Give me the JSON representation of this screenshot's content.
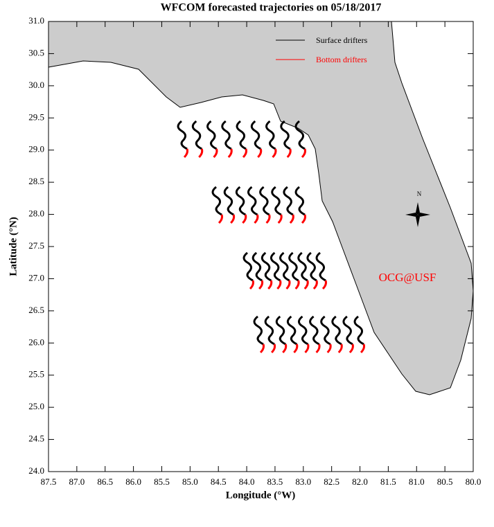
{
  "chart_data": {
    "type": "map",
    "title": "WFCOM forecasted trajectories on 05/18/2017",
    "x_label": "Longitude (°W)",
    "y_label": "Latitude (°N)",
    "xlim": [
      87.5,
      80.0
    ],
    "ylim": [
      24.0,
      31.0
    ],
    "xticks": [
      87.5,
      {
        "value": 87,
        "label": "87.0"
      },
      86.5,
      {
        "value": 86,
        "label": "86.0"
      },
      85.5,
      {
        "value": 85,
        "label": "85.0"
      },
      84.5,
      {
        "value": 84,
        "label": "84.0"
      },
      83.5,
      {
        "value": 83,
        "label": "83.0"
      },
      82.5,
      {
        "value": 82,
        "label": "82.0"
      },
      81.5,
      {
        "value": 81,
        "label": "81.0"
      },
      80.5,
      {
        "value": 80,
        "label": "80.0"
      }
    ],
    "yticks": [
      {
        "value": 24,
        "label": "24.0"
      },
      24.5,
      {
        "value": 25,
        "label": "25.0"
      },
      25.5,
      {
        "value": 26,
        "label": "26.0"
      },
      26.5,
      {
        "value": 27,
        "label": "27.0"
      },
      27.5,
      {
        "value": 28,
        "label": "28.0"
      },
      28.5,
      {
        "value": 29,
        "label": "29.0"
      },
      29.5,
      {
        "value": 30,
        "label": "30.0"
      },
      30.5,
      {
        "value": 31,
        "label": "31.0"
      }
    ],
    "series": [
      {
        "name": "Surface drifters",
        "color": "#000000"
      },
      {
        "name": "Bottom drifters",
        "color": "#ff0000"
      }
    ],
    "annotations": [
      "OCG@USF",
      "N"
    ],
    "annotation_color": "#ff0000",
    "land_color": "#cccccc"
  }
}
